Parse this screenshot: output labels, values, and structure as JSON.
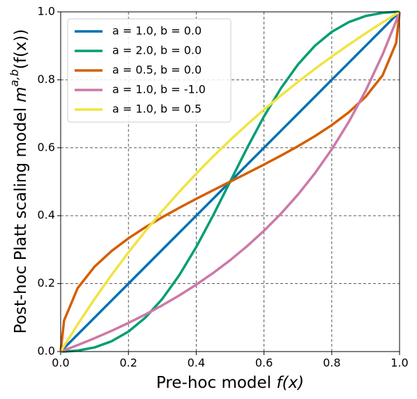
{
  "chart_data": {
    "type": "line",
    "xlabel": {
      "text": "Pre-hoc model ",
      "func": "f(x)"
    },
    "ylabel": {
      "text": "Post-hoc Platt scaling model ",
      "func": "m",
      "sup": "a,b",
      "arg": "(f(x))"
    },
    "x": [
      0,
      0.01,
      0.05,
      0.1,
      0.15,
      0.2,
      0.25,
      0.3,
      0.35,
      0.4,
      0.45,
      0.5,
      0.55,
      0.6,
      0.65,
      0.7,
      0.75,
      0.8,
      0.85,
      0.9,
      0.95,
      0.99,
      1
    ],
    "series": [
      {
        "name": "a = 1.0, b = 0.0",
        "color": "#0072b2",
        "values": [
          0,
          0.01,
          0.05,
          0.1,
          0.15,
          0.2,
          0.25,
          0.3,
          0.35,
          0.4,
          0.45,
          0.5,
          0.55,
          0.6,
          0.65,
          0.7,
          0.75,
          0.8,
          0.85,
          0.9,
          0.95,
          0.99,
          1
        ]
      },
      {
        "name": "a = 2.0, b = 0.0",
        "color": "#009e73",
        "values": [
          0,
          0.0001,
          0.0028,
          0.0122,
          0.0302,
          0.0588,
          0.1,
          0.1552,
          0.2248,
          0.3077,
          0.401,
          0.5,
          0.599,
          0.6923,
          0.7752,
          0.8448,
          0.9,
          0.9412,
          0.9698,
          0.9878,
          0.9972,
          0.9999,
          1
        ]
      },
      {
        "name": "a = 0.5, b = 0.0",
        "color": "#d55e00",
        "values": [
          0,
          0.0913,
          0.1866,
          0.25,
          0.2958,
          0.3333,
          0.366,
          0.3956,
          0.4232,
          0.4495,
          0.4749,
          0.5,
          0.5251,
          0.5505,
          0.5768,
          0.6044,
          0.634,
          0.6667,
          0.7042,
          0.75,
          0.8134,
          0.9087,
          1
        ]
      },
      {
        "name": "a = 1.0, b = -1.0",
        "color": "#cc79a7",
        "values": [
          0,
          0.0037,
          0.019,
          0.0393,
          0.061,
          0.0842,
          0.1092,
          0.1362,
          0.1653,
          0.1969,
          0.2313,
          0.2689,
          0.3102,
          0.3556,
          0.4059,
          0.4619,
          0.5246,
          0.5954,
          0.6758,
          0.768,
          0.8748,
          0.9733,
          1
        ]
      },
      {
        "name": "a = 1.0, b = 0.5",
        "color": "#f0e442",
        "values": [
          0,
          0.0164,
          0.0798,
          0.1548,
          0.2254,
          0.2919,
          0.3547,
          0.414,
          0.4703,
          0.5236,
          0.5743,
          0.6225,
          0.6683,
          0.7121,
          0.7538,
          0.7937,
          0.8318,
          0.8683,
          0.9033,
          0.9369,
          0.9691,
          0.9939,
          1
        ]
      }
    ],
    "xlim": [
      0,
      1
    ],
    "ylim": [
      0,
      1
    ],
    "xticks": [
      {
        "value": 0,
        "label": "0.0"
      },
      0.2,
      0.4,
      0.6,
      0.8,
      {
        "value": 1,
        "label": "1.0"
      }
    ],
    "yticks": [
      {
        "value": 0,
        "label": "0.0"
      },
      0.2,
      0.4,
      0.6,
      0.8,
      {
        "value": 1,
        "label": "1.0"
      }
    ],
    "grid": true,
    "legend": "upper left"
  }
}
